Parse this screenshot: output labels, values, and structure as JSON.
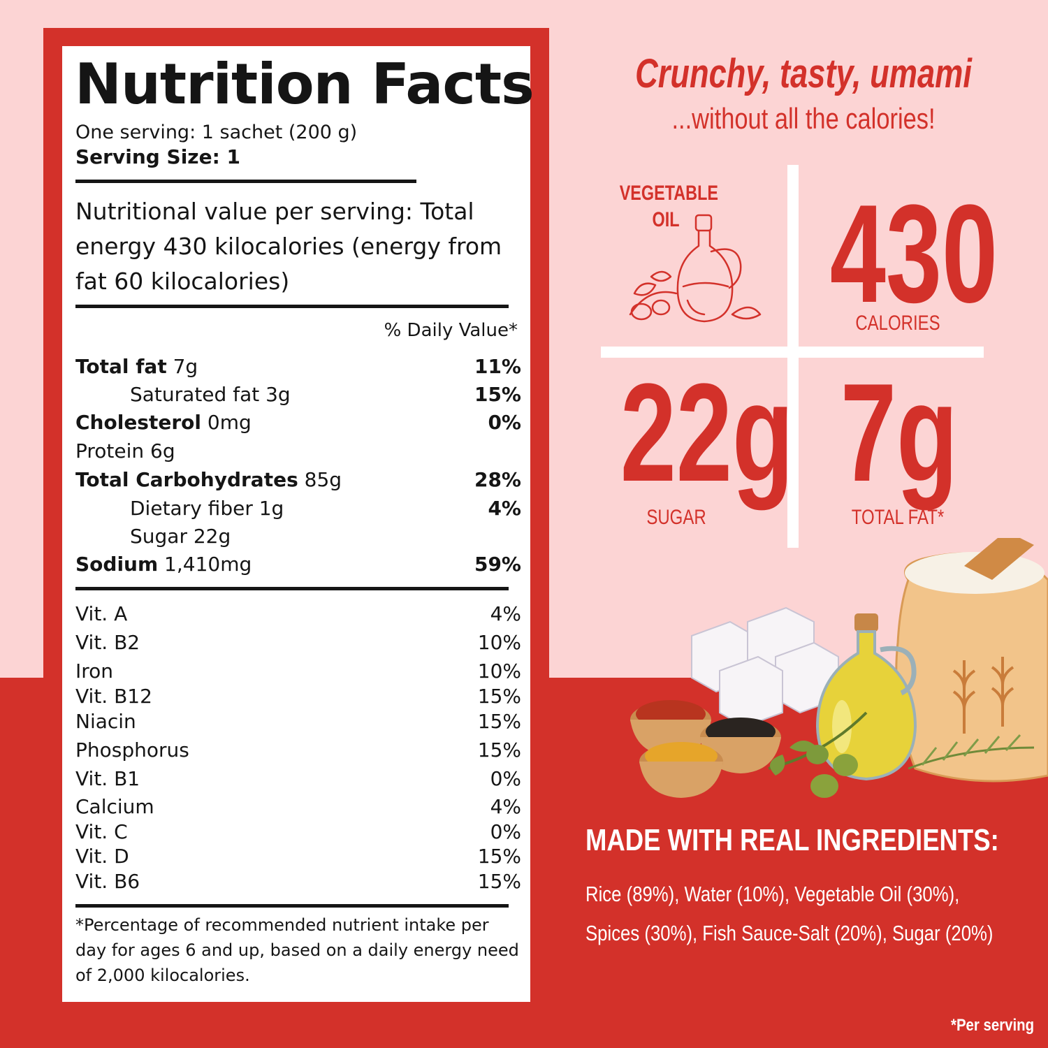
{
  "label": {
    "title": "Nutrition Facts",
    "serving_line": "One serving: 1 sachet (200 g)",
    "serving_size": "Serving Size: 1",
    "energy_text": "Nutritional value per serving: Total energy 430 kilocalories (energy from fat 60 kilocalories)",
    "dv_header": "% Daily Value*",
    "nutrients": [
      {
        "name": "Total fat",
        "amount": " 7g",
        "pct": "11%"
      },
      {
        "name": "Saturated fat 3g",
        "amount": "",
        "pct": "15%"
      },
      {
        "name": "Cholesterol",
        "amount": " 0mg",
        "pct": "0%"
      },
      {
        "name": "Protein 6g",
        "amount": "",
        "pct": ""
      },
      {
        "name": "Total Carbohydrates",
        "amount": " 85g",
        "pct": "28%"
      },
      {
        "name": "Dietary fiber 1g",
        "amount": "",
        "pct": "4%"
      },
      {
        "name": "Sugar 22g",
        "amount": "",
        "pct": ""
      },
      {
        "name": "Sodium",
        "amount": " 1,410mg",
        "pct": "59%"
      }
    ],
    "vitamins": [
      {
        "name": "Vit. A",
        "pct": "4%"
      },
      {
        "name": "Vit. B2",
        "pct": "10%"
      },
      {
        "name": "Iron",
        "pct": "10%"
      },
      {
        "name": "Vit. B12",
        "pct": "15%"
      },
      {
        "name": "Niacin",
        "pct": "15%"
      },
      {
        "name": "Phosphorus",
        "pct": "15%"
      },
      {
        "name": "Vit. B1",
        "pct": "0%"
      },
      {
        "name": "Calcium",
        "pct": "4%"
      },
      {
        "name": "Vit. C",
        "pct": "0%"
      },
      {
        "name": "Vit. D",
        "pct": "15%"
      },
      {
        "name": "Vit. B6",
        "pct": "15%"
      }
    ],
    "footnote": "*Percentage of recommended nutrient intake per day for ages 6 and up, based on a daily energy need of 2,000 kilocalories."
  },
  "promo": {
    "tagline": "Crunchy, tasty, umami",
    "subtagline": "...without all the calories!",
    "vegetable_oil": "VEGETABLE OIL",
    "calories_value": "430",
    "calories_label": "CALORIES",
    "sugar_value": "22g",
    "sugar_label": "SUGAR",
    "fat_value": "7g",
    "fat_label": "TOTAL FAT*",
    "made_title": "MADE WITH REAL INGREDIENTS:",
    "ingredients": "Rice (89%), Water (10%), Vegetable Oil (30%), Spices (30%), Fish Sauce-Salt (20%), Sugar (20%)",
    "per_serving": "*Per serving"
  },
  "colors": {
    "brand_red": "#d3312a",
    "pink_bg": "#fcd4d4",
    "ink": "#151515"
  },
  "icons": [
    "oil-bottle-icon",
    "olive-branch-icon",
    "sugar-cubes-icon",
    "spice-bowls-icon",
    "rice-sack-icon"
  ]
}
